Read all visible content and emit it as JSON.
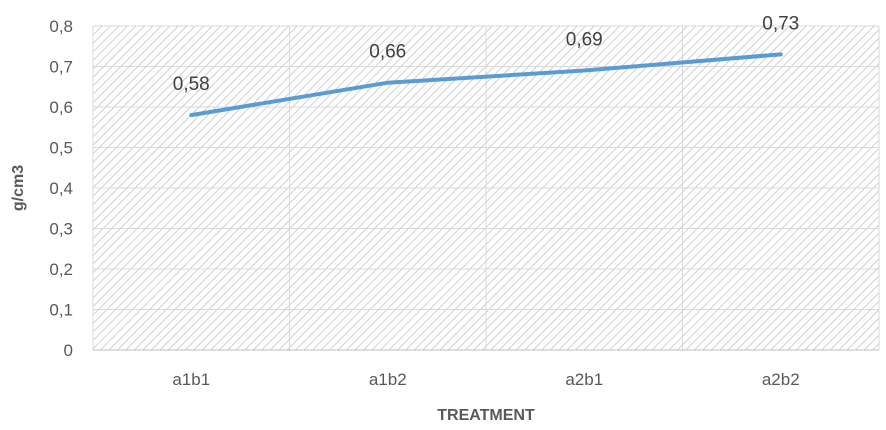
{
  "chart_data": {
    "type": "line",
    "title": "",
    "xlabel": "TREATMENT",
    "ylabel": "g/cm3",
    "categories": [
      "a1b1",
      "a1b2",
      "a2b1",
      "a2b2"
    ],
    "series": [
      {
        "values": [
          0.58,
          0.66,
          0.69,
          0.73
        ],
        "color": "#5B9BD5"
      }
    ],
    "data_labels": [
      "0,58",
      "0,66",
      "0,69",
      "0,73"
    ],
    "ylim": [
      0,
      0.8
    ],
    "y_ticks": [
      0,
      0.1,
      0.2,
      0.3,
      0.4,
      0.5,
      0.6,
      0.7,
      0.8
    ],
    "y_tick_labels": [
      "0",
      "0,1",
      "0,2",
      "0,3",
      "0,4",
      "0,5",
      "0,6",
      "0,7",
      "0,8"
    ],
    "grid": true,
    "legend": "none",
    "plot_background": "hatched"
  }
}
